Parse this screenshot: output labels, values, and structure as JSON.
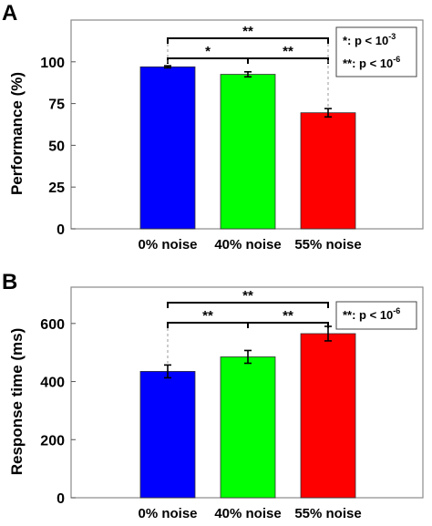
{
  "chart_data": [
    {
      "panel": "A",
      "type": "bar",
      "categories": [
        "0% noise",
        "40% noise",
        "55% noise"
      ],
      "values": [
        97,
        92.5,
        69.5
      ],
      "errors": [
        0.6,
        1.5,
        2.5
      ],
      "colors": [
        "#0000ff",
        "#00ff00",
        "#ff0000"
      ],
      "ylabel": "Performance (%)",
      "ylim": [
        0,
        125
      ],
      "yticks": [
        "0",
        "25",
        "50",
        "75",
        "100"
      ],
      "ytick_values": [
        0,
        25,
        50,
        75,
        100
      ],
      "significance": [
        {
          "from": 0,
          "to": 1,
          "label": "*"
        },
        {
          "from": 1,
          "to": 2,
          "label": "**"
        },
        {
          "from": 0,
          "to": 2,
          "label": "**"
        }
      ],
      "legend": [
        {
          "prefix": "*: p < 10",
          "exp": "-3"
        },
        {
          "prefix": "**: p < 10",
          "exp": "-6"
        }
      ]
    },
    {
      "panel": "B",
      "type": "bar",
      "categories": [
        "0% noise",
        "40% noise",
        "55% noise"
      ],
      "values": [
        435,
        485,
        565
      ],
      "errors": [
        22,
        22,
        25
      ],
      "colors": [
        "#0000ff",
        "#00ff00",
        "#ff0000"
      ],
      "ylabel": "Response time (ms)",
      "ylim": [
        0,
        725
      ],
      "yticks": [
        "0",
        "200",
        "400",
        "600"
      ],
      "ytick_values": [
        0,
        200,
        400,
        600
      ],
      "significance": [
        {
          "from": 0,
          "to": 1,
          "label": "**"
        },
        {
          "from": 1,
          "to": 2,
          "label": "**"
        },
        {
          "from": 0,
          "to": 2,
          "label": "**"
        }
      ],
      "legend": [
        {
          "prefix": "**: p < 10",
          "exp": "-6"
        }
      ]
    }
  ]
}
